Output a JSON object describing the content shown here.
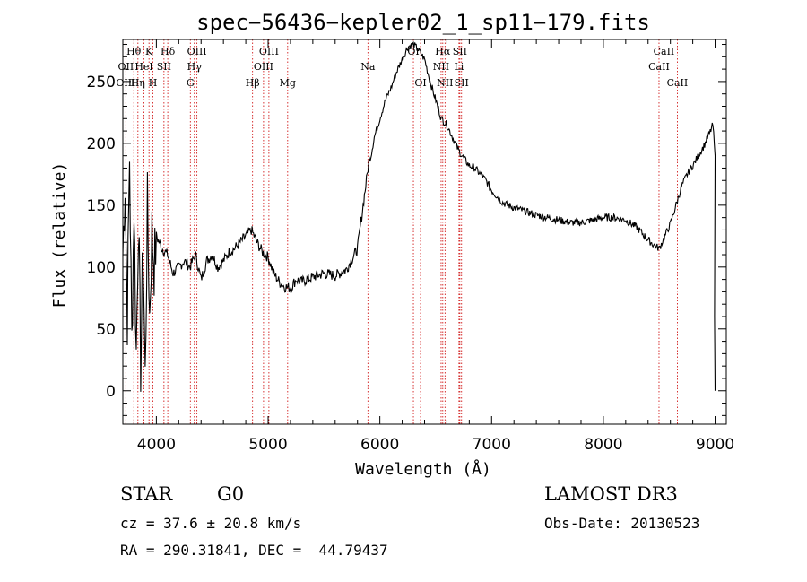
{
  "chart_data": {
    "type": "line",
    "title": "spec−56436−kepler02_1_sp11−179.fits",
    "xlabel": "Wavelength (Å)",
    "ylabel": "Flux (relative)",
    "xlim": [
      3700,
      9100
    ],
    "ylim": [
      -27,
      284
    ],
    "xticks": [
      4000,
      5000,
      6000,
      7000,
      8000,
      9000
    ],
    "yticks": [
      0,
      50,
      100,
      150,
      200,
      250
    ],
    "line_color": "#000000",
    "marker_color": "#cc0000",
    "series": [
      {
        "name": "flux",
        "x": [
          3700,
          3720,
          3740,
          3760,
          3780,
          3800,
          3820,
          3840,
          3860,
          3880,
          3900,
          3920,
          3940,
          3960,
          3980,
          4000,
          4050,
          4100,
          4150,
          4200,
          4250,
          4300,
          4350,
          4400,
          4450,
          4500,
          4550,
          4600,
          4650,
          4700,
          4750,
          4800,
          4850,
          4900,
          4950,
          5000,
          5050,
          5100,
          5150,
          5200,
          5250,
          5300,
          5400,
          5500,
          5600,
          5700,
          5800,
          5850,
          5880,
          5900,
          5920,
          5950,
          6000,
          6050,
          6100,
          6150,
          6200,
          6250,
          6300,
          6350,
          6400,
          6450,
          6500,
          6550,
          6600,
          6650,
          6700,
          6750,
          6800,
          6850,
          6900,
          6950,
          7000,
          7100,
          7200,
          7300,
          7400,
          7500,
          7600,
          7700,
          7800,
          7900,
          8000,
          8100,
          8200,
          8300,
          8400,
          8450,
          8500,
          8550,
          8600,
          8650,
          8700,
          8750,
          8800,
          8850,
          8900,
          8950,
          8980,
          9000
        ],
        "y": [
          110,
          170,
          60,
          190,
          40,
          150,
          30,
          140,
          20,
          120,
          10,
          150,
          60,
          130,
          100,
          125,
          115,
          110,
          95,
          100,
          105,
          100,
          110,
          90,
          105,
          110,
          100,
          105,
          112,
          115,
          120,
          125,
          130,
          120,
          112,
          108,
          95,
          88,
          84,
          83,
          90,
          88,
          92,
          95,
          93,
          98,
          115,
          150,
          170,
          185,
          190,
          205,
          220,
          235,
          245,
          258,
          268,
          278,
          280,
          275,
          268,
          250,
          235,
          220,
          215,
          205,
          195,
          188,
          182,
          180,
          175,
          170,
          162,
          152,
          148,
          145,
          142,
          140,
          138,
          136,
          136,
          138,
          140,
          140,
          138,
          132,
          122,
          118,
          115,
          125,
          135,
          150,
          165,
          175,
          182,
          190,
          198,
          208,
          215,
          190
        ],
        "end_drop": [
          [
            8995,
            60
          ],
          [
            9000,
            0
          ]
        ]
      }
    ],
    "spectral_lines": [
      {
        "label": "Hθ",
        "x": 3798,
        "row": 1
      },
      {
        "label": "OII",
        "x": 3727,
        "row": 2
      },
      {
        "label": "OIII",
        "x": 3727,
        "row": 3
      },
      {
        "label": "K",
        "x": 3934,
        "row": 1
      },
      {
        "label": "Hη",
        "x": 3835,
        "row": 3
      },
      {
        "label": "HeI",
        "x": 3889,
        "row": 2
      },
      {
        "label": "SII",
        "x": 4068,
        "row": 2
      },
      {
        "label": "H",
        "x": 3969,
        "row": 3
      },
      {
        "label": "Hδ",
        "x": 4102,
        "row": 1
      },
      {
        "label": "OIII",
        "x": 4363,
        "row": 1
      },
      {
        "label": "Hγ",
        "x": 4340,
        "row": 2
      },
      {
        "label": "G",
        "x": 4304,
        "row": 3
      },
      {
        "label": "OIII",
        "x": 5007,
        "row": 1
      },
      {
        "label": "OIII",
        "x": 4959,
        "row": 2
      },
      {
        "label": "Hβ",
        "x": 4861,
        "row": 3
      },
      {
        "label": "Mg",
        "x": 5175,
        "row": 3
      },
      {
        "label": "Na",
        "x": 5893,
        "row": 2
      },
      {
        "label": "OI",
        "x": 6300,
        "row": 1
      },
      {
        "label": "OI",
        "x": 6364,
        "row": 3
      },
      {
        "label": "Hα",
        "x": 6563,
        "row": 1
      },
      {
        "label": "NII",
        "x": 6548,
        "row": 2
      },
      {
        "label": "NII",
        "x": 6583,
        "row": 3
      },
      {
        "label": "SII",
        "x": 6716,
        "row": 1
      },
      {
        "label": "Li",
        "x": 6708,
        "row": 2
      },
      {
        "label": "SII",
        "x": 6731,
        "row": 3
      },
      {
        "label": "CaII",
        "x": 8542,
        "row": 1
      },
      {
        "label": "CaII",
        "x": 8498,
        "row": 2
      },
      {
        "label": "CaII",
        "x": 8662,
        "row": 3
      }
    ]
  },
  "info": {
    "object_class": "STAR",
    "subclass": "G0",
    "survey": "LAMOST DR3",
    "redshift": "cz = 37.6 ± 20.8 km/s",
    "obs_date": "Obs-Date: 20130523",
    "coords": "RA = 290.31841, DEC =  44.79437"
  }
}
